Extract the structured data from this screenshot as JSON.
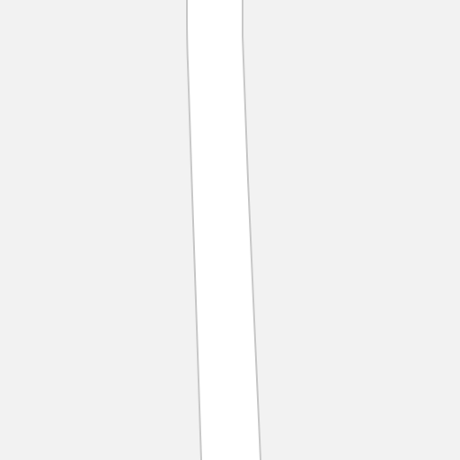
{
  "map": {
    "colors": {
      "land": "#f2f2f2",
      "road_fill": "#ffffff",
      "road_casing": "#c8c8c8"
    },
    "features": [
      {
        "type": "road",
        "label": ""
      }
    ]
  }
}
